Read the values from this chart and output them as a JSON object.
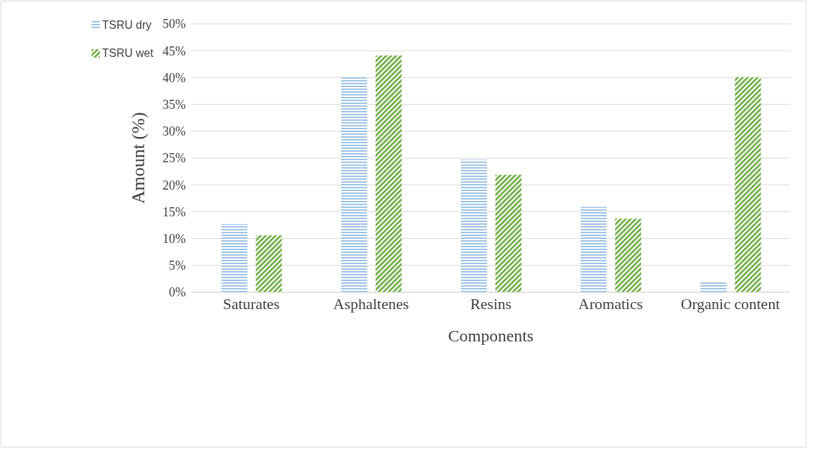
{
  "chart_data": {
    "type": "bar",
    "xlabel": "Components",
    "ylabel": "Amount (%)",
    "categories": [
      "Saturates",
      "Asphaltenes",
      "Resins",
      "Aromatics",
      "Organic content"
    ],
    "series": [
      {
        "name": "TSRU dry",
        "color": "#9dc3e6",
        "values": [
          12.7,
          40.3,
          24.7,
          15.9,
          2.0
        ]
      },
      {
        "name": "TSRU wet",
        "color": "#70ad47",
        "values": [
          10.6,
          44.1,
          21.9,
          13.7,
          40.1
        ]
      }
    ],
    "ylim": [
      0,
      50
    ],
    "yticks": [
      {
        "value": 0,
        "label": "0%"
      },
      {
        "value": 5,
        "label": "5%"
      },
      {
        "value": 10,
        "label": "10%"
      },
      {
        "value": 15,
        "label": "15%"
      },
      {
        "value": 20,
        "label": "20%"
      },
      {
        "value": 25,
        "label": "25%"
      },
      {
        "value": 30,
        "label": "30%"
      },
      {
        "value": 35,
        "label": "35%"
      },
      {
        "value": 40,
        "label": "40%"
      },
      {
        "value": 45,
        "label": "45%"
      },
      {
        "value": 50,
        "label": "50%"
      }
    ],
    "grid": "y",
    "legend": "top left"
  }
}
